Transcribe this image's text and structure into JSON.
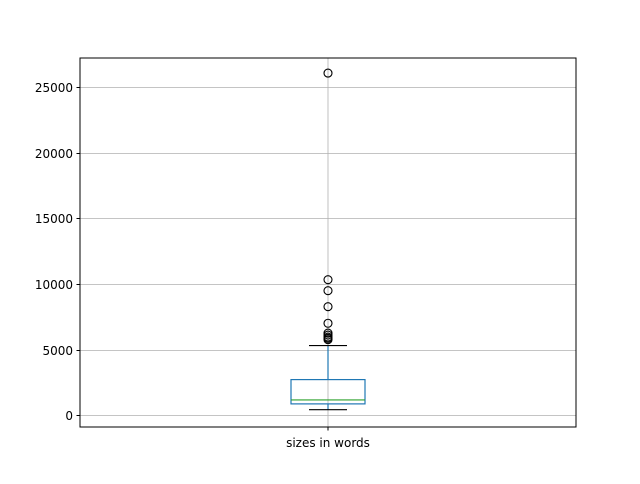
{
  "chart_data": {
    "type": "box",
    "categories": [
      "sizes in words"
    ],
    "xlabel": "",
    "ylabel": "",
    "ylim": [
      -900,
      27200
    ],
    "yticks": [
      0,
      5000,
      10000,
      15000,
      20000,
      25000
    ],
    "grid": true,
    "box": {
      "whisker_low": 420,
      "q1": 860,
      "median": 1160,
      "q3": 2710,
      "whisker_high": 5300,
      "fliers": [
        5750,
        5850,
        5950,
        6100,
        6250,
        7000,
        8260,
        9480,
        10320,
        26050
      ]
    },
    "colors": {
      "box": "#1f77b4",
      "median": "#2ca02c",
      "grid": "#b0b0b0",
      "flier": "#000000"
    }
  }
}
